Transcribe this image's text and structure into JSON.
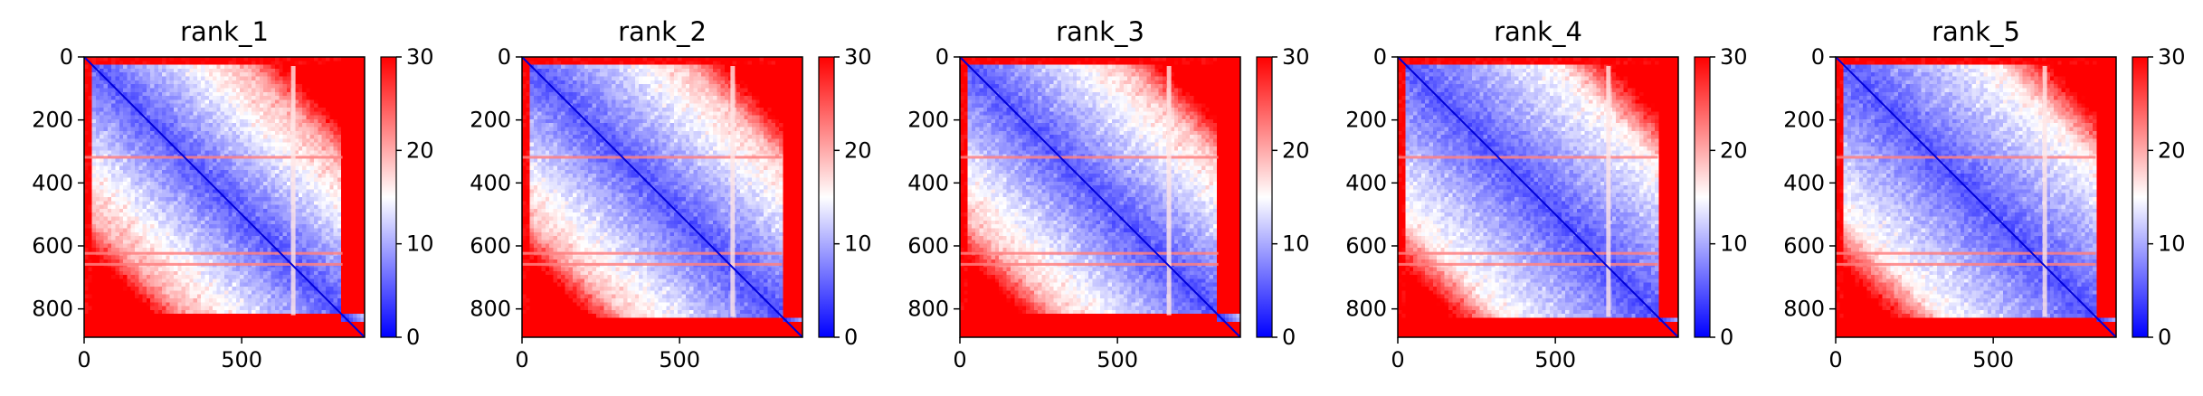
{
  "figure": {
    "background": "#ffffff"
  },
  "chart_data": [
    {
      "type": "heatmap",
      "title": "rank_1",
      "xlabel": "",
      "ylabel": "",
      "xticks": [
        0,
        500
      ],
      "yticks": [
        0,
        200,
        400,
        600,
        800
      ],
      "xlim": [
        0,
        890
      ],
      "ylim": [
        890,
        0
      ],
      "colorbar": {
        "ticks": [
          0,
          10,
          20,
          30
        ],
        "range": [
          0,
          30
        ],
        "colormap": "bwr"
      },
      "description_values": {
        "near_diagonal": 3,
        "central_block": 12,
        "edges": 30
      },
      "block_end": 820,
      "bright_rows": [
        320,
        625,
        660
      ],
      "bright_cols": [
        665
      ]
    },
    {
      "type": "heatmap",
      "title": "rank_2",
      "xlabel": "",
      "ylabel": "",
      "xticks": [
        0,
        500
      ],
      "yticks": [
        0,
        200,
        400,
        600,
        800
      ],
      "xlim": [
        0,
        890
      ],
      "ylim": [
        890,
        0
      ],
      "colorbar": {
        "ticks": [
          0,
          10,
          20,
          30
        ],
        "range": [
          0,
          30
        ],
        "colormap": "bwr"
      },
      "description_values": {
        "near_diagonal": 3,
        "central_block": 11,
        "edges": 30
      },
      "block_end": 825,
      "bright_rows": [
        320,
        625,
        660
      ],
      "bright_cols": [
        670
      ]
    },
    {
      "type": "heatmap",
      "title": "rank_3",
      "xlabel": "",
      "ylabel": "",
      "xticks": [
        0,
        500
      ],
      "yticks": [
        0,
        200,
        400,
        600,
        800
      ],
      "xlim": [
        0,
        890
      ],
      "ylim": [
        890,
        0
      ],
      "colorbar": {
        "ticks": [
          0,
          10,
          20,
          30
        ],
        "range": [
          0,
          30
        ],
        "colormap": "bwr"
      },
      "description_values": {
        "near_diagonal": 3,
        "central_block": 11,
        "edges": 30
      },
      "block_end": 820,
      "bright_rows": [
        320,
        625,
        660
      ],
      "bright_cols": [
        665
      ]
    },
    {
      "type": "heatmap",
      "title": "rank_4",
      "xlabel": "",
      "ylabel": "",
      "xticks": [
        0,
        500
      ],
      "yticks": [
        0,
        200,
        400,
        600,
        800
      ],
      "xlim": [
        0,
        890
      ],
      "ylim": [
        890,
        0
      ],
      "colorbar": {
        "ticks": [
          0,
          10,
          20,
          30
        ],
        "range": [
          0,
          30
        ],
        "colormap": "bwr"
      },
      "description_values": {
        "near_diagonal": 3,
        "central_block": 9,
        "edges": 30
      },
      "block_end": 825,
      "bright_rows": [
        320,
        625,
        660
      ],
      "bright_cols": [
        670
      ]
    },
    {
      "type": "heatmap",
      "title": "rank_5",
      "xlabel": "",
      "ylabel": "",
      "xticks": [
        0,
        500
      ],
      "yticks": [
        0,
        200,
        400,
        600,
        800
      ],
      "xlim": [
        0,
        890
      ],
      "ylim": [
        890,
        0
      ],
      "colorbar": {
        "ticks": [
          0,
          10,
          20,
          30
        ],
        "range": [
          0,
          30
        ],
        "colormap": "bwr"
      },
      "description_values": {
        "near_diagonal": 3,
        "central_block": 9,
        "edges": 30
      },
      "block_end": 825,
      "bright_rows": [
        320,
        625,
        660
      ],
      "bright_cols": [
        665
      ]
    }
  ]
}
